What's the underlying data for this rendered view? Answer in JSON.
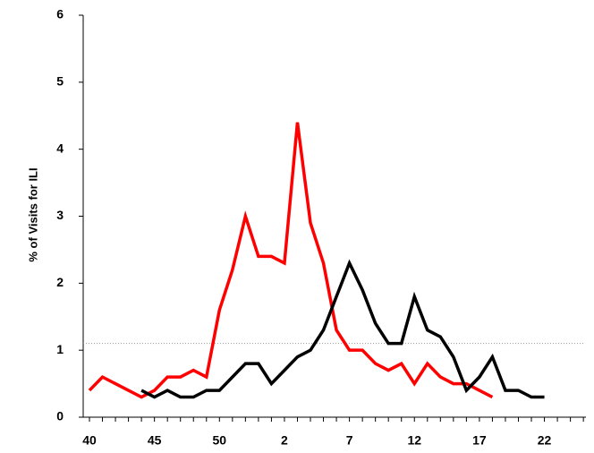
{
  "chart_data": {
    "type": "line",
    "y_label": "% of Visits for ILI",
    "categories": [
      "40",
      null,
      null,
      null,
      null,
      "45",
      null,
      null,
      null,
      null,
      "50",
      null,
      null,
      null,
      null,
      "2",
      null,
      null,
      null,
      null,
      "7",
      null,
      null,
      null,
      null,
      "12",
      null,
      null,
      null,
      null,
      "17",
      null,
      null,
      null,
      null,
      "22",
      null,
      null,
      null
    ],
    "series": [
      {
        "color": "#ff0000",
        "values": [
          0.4,
          0.6,
          0.5,
          0.4,
          0.3,
          0.4,
          0.6,
          0.6,
          0.7,
          0.6,
          1.6,
          2.2,
          3.0,
          2.4,
          2.4,
          2.3,
          4.4,
          2.9,
          2.3,
          1.3,
          1.0,
          1.0,
          0.8,
          0.7,
          0.8,
          0.5,
          0.8,
          0.6,
          0.5,
          0.5,
          0.4,
          0.3,
          null,
          null,
          null,
          null,
          null,
          null,
          null
        ]
      },
      {
        "color": "#000000",
        "values": [
          null,
          null,
          null,
          null,
          0.4,
          0.3,
          0.4,
          0.3,
          0.3,
          0.4,
          0.4,
          0.6,
          0.8,
          0.8,
          0.5,
          0.7,
          0.9,
          1.0,
          1.3,
          1.8,
          2.3,
          1.9,
          1.4,
          1.1,
          1.1,
          1.8,
          1.3,
          1.2,
          0.9,
          0.4,
          0.6,
          0.9,
          0.4,
          0.4,
          0.3,
          0.3,
          null,
          null,
          null
        ]
      }
    ],
    "baseline": 1.1,
    "baseline_color": "#999999",
    "ylim": [
      0,
      6
    ],
    "yticks": [
      0,
      1,
      2,
      3,
      4,
      5,
      6
    ]
  }
}
